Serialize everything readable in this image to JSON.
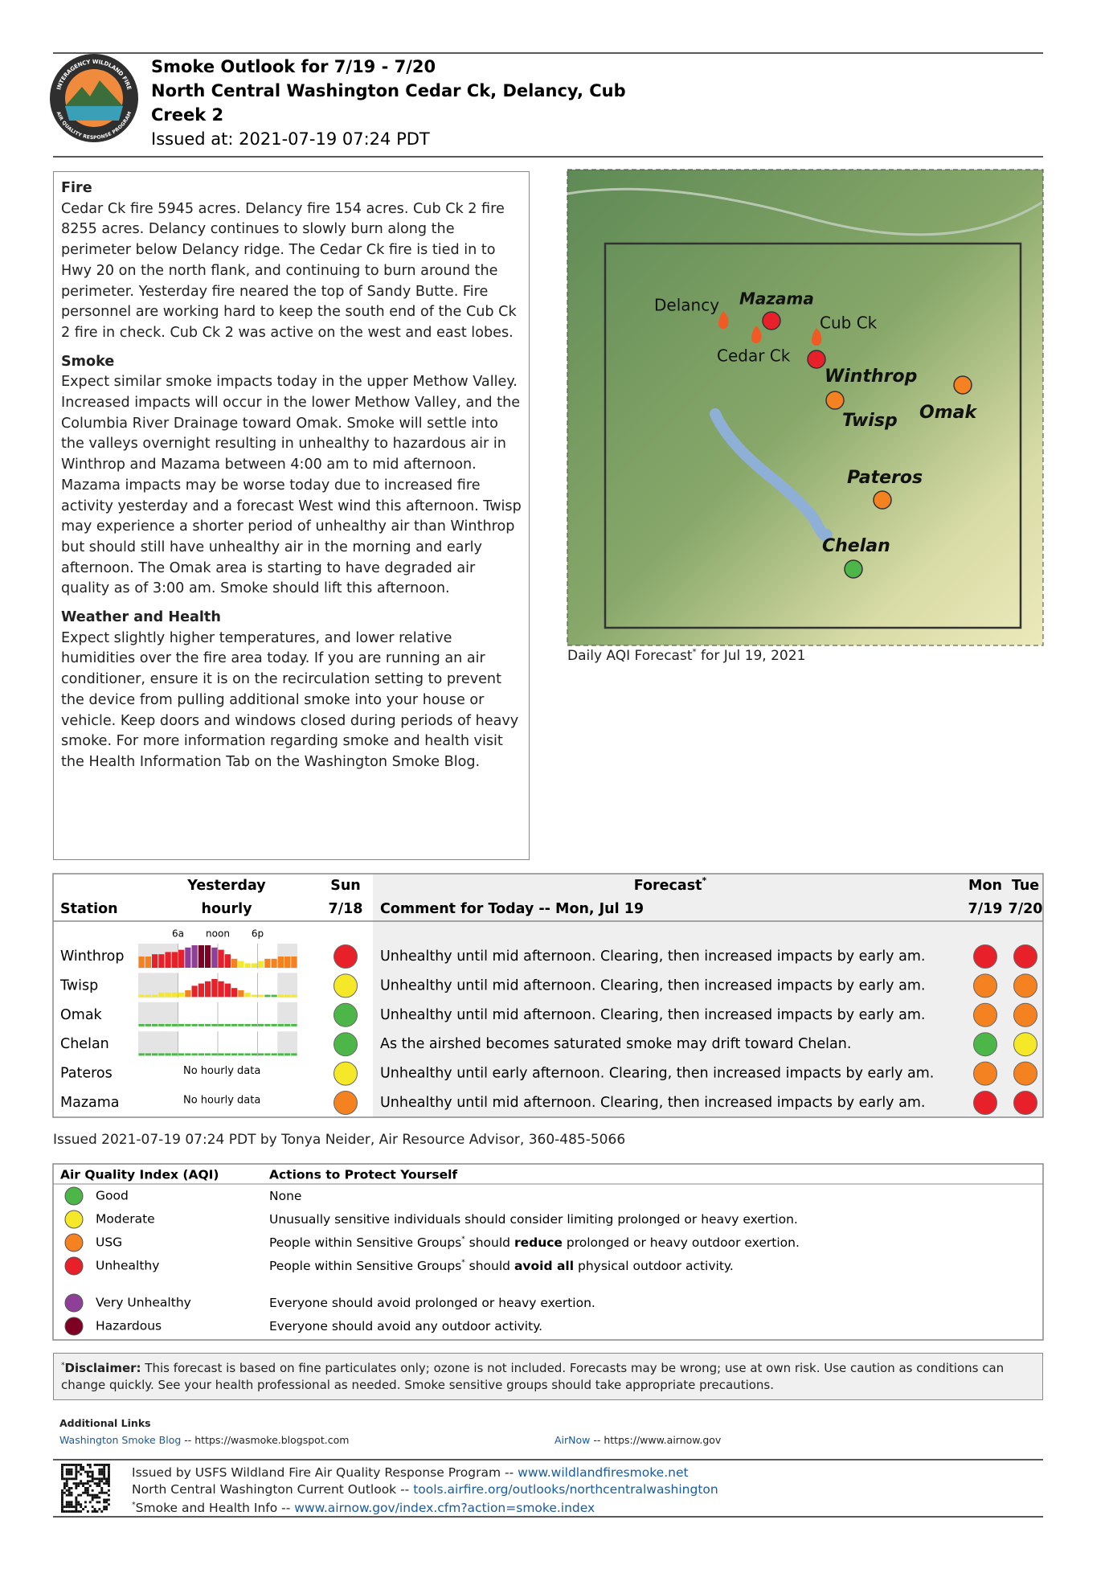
{
  "header": {
    "logo_top": "INTERAGENCY WILDLAND FIRE",
    "logo_bottom": "AIR QUALITY RESPONSE PROGRAM",
    "title_lines": [
      "Smoke Outlook for 7/19 - 7/20",
      "North Central Washington Cedar Ck, Delancy, Cub",
      "Creek 2"
    ],
    "issued": "Issued at: 2021-07-19 07:24 PDT"
  },
  "sections": [
    {
      "heading": "Fire",
      "text": "Cedar Ck fire 5945 acres. Delancy fire 154 acres. Cub Ck 2 fire 8255 acres. Delancy continues to slowly burn along the perimeter below Delancy ridge. The Cedar Ck fire is tied in to Hwy 20 on the north flank, and continuing to burn around the perimeter. Yesterday fire neared the top of Sandy Butte. Fire personnel are working hard to keep the south end of the Cub Ck 2 fire in check. Cub Ck 2 was active on the west and east lobes."
    },
    {
      "heading": "Smoke",
      "text": "Expect similar smoke impacts today in the upper Methow Valley. Increased impacts will occur in the lower Methow Valley, and the Columbia River Drainage toward Omak. Smoke will settle into the valleys overnight resulting in unhealthy to hazardous air in Winthrop and Mazama between 4:00 am to mid afternoon. Mazama impacts may be worse today due to increased fire activity yesterday and a forecast West wind this afternoon. Twisp may experience a shorter period of unhealthy air than Winthrop but should still have unhealthy air in the morning and early afternoon. The Omak area is starting to have degraded air quality as of 3:00 am. Smoke should lift this afternoon."
    },
    {
      "heading": "Weather and Health",
      "text": "Expect slightly higher temperatures, and lower relative humidities over the fire area today. If you are running an air conditioner, ensure it is on the recirculation setting to prevent the device from pulling additional smoke into your house or vehicle. Keep doors and windows closed during periods of heavy smoke. For more information regarding smoke and health visit the Health Information Tab on the Washington Smoke Blog."
    }
  ],
  "map": {
    "labels": [
      "Delancy",
      "Mazama",
      "Cub Ck",
      "Cedar Ck",
      "Winthrop",
      "Omak",
      "Twisp",
      "Pateros",
      "Chelan"
    ],
    "caption": "Daily AQI Forecast",
    "caption_mark": "*",
    "caption_date": " for Jul 19, 2021"
  },
  "forecast_table": {
    "headers": {
      "station": "Station",
      "yesterday": "Yesterday",
      "hourly": "hourly",
      "sun": "Sun",
      "sun_date": "7/18",
      "forecast": "Forecast",
      "forecast_mark": "*",
      "comment": "Comment for Today -- Mon, Jul 19",
      "mon": "Mon",
      "mon_date": "7/19",
      "tue": "Tue",
      "tue_date": "7/20"
    },
    "hourly_ticks": [
      {
        "value": 6,
        "label": "6a"
      },
      {
        "value": 12,
        "label": "noon"
      },
      {
        "value": 18,
        "label": "6p"
      }
    ],
    "rows": [
      {
        "station": "Winthrop",
        "hourly_values": [
          5,
          5,
          6,
          6,
          7,
          7,
          8,
          9,
          10,
          10,
          10,
          9,
          8,
          6,
          4,
          3,
          2,
          2,
          3,
          4,
          4,
          5,
          5,
          5
        ],
        "hourly_levels": [
          2,
          2,
          3,
          3,
          3,
          3,
          3,
          4,
          4,
          5,
          5,
          4,
          3,
          3,
          2,
          1,
          1,
          1,
          1,
          2,
          2,
          2,
          2,
          2
        ],
        "sun": 3,
        "comment": "Unhealthy until mid afternoon. Clearing, then increased impacts by early am.",
        "mon": 3,
        "tue": 3
      },
      {
        "station": "Twisp",
        "hourly_values": [
          1,
          1,
          1,
          2,
          2,
          2,
          2,
          3,
          5,
          6,
          7,
          8,
          7,
          6,
          4,
          3,
          2,
          1,
          1,
          1,
          1,
          1,
          1,
          1
        ],
        "hourly_levels": [
          1,
          1,
          1,
          1,
          1,
          1,
          1,
          2,
          3,
          3,
          3,
          3,
          3,
          3,
          3,
          2,
          1,
          1,
          1,
          0,
          0,
          1,
          1,
          1
        ],
        "sun": 1,
        "comment": "Unhealthy until mid afternoon. Clearing, then increased impacts by early am.",
        "mon": 2,
        "tue": 2
      },
      {
        "station": "Omak",
        "hourly_values": [
          1,
          1,
          1,
          1,
          1,
          1,
          1,
          1,
          1,
          1,
          1,
          1,
          1,
          1,
          1,
          1,
          1,
          1,
          1,
          1,
          1,
          1,
          1,
          1
        ],
        "hourly_levels": [
          0,
          0,
          0,
          0,
          0,
          0,
          0,
          0,
          0,
          0,
          0,
          0,
          0,
          0,
          0,
          0,
          0,
          0,
          0,
          0,
          0,
          0,
          0,
          0
        ],
        "sun": 0,
        "comment": "Unhealthy until mid afternoon. Clearing, then increased impacts by early am.",
        "mon": 2,
        "tue": 2
      },
      {
        "station": "Chelan",
        "hourly_values": [
          1,
          1,
          1,
          1,
          1,
          1,
          1,
          1,
          1,
          1,
          1,
          1,
          1,
          1,
          1,
          1,
          1,
          1,
          1,
          1,
          1,
          1,
          1,
          1
        ],
        "hourly_levels": [
          0,
          0,
          0,
          0,
          0,
          0,
          0,
          0,
          0,
          0,
          0,
          0,
          0,
          0,
          0,
          0,
          0,
          0,
          0,
          0,
          0,
          0,
          0,
          0
        ],
        "sun": 0,
        "comment": "As the airshed becomes saturated smoke may drift toward Chelan.",
        "mon": 0,
        "tue": 1
      },
      {
        "station": "Pateros",
        "hourly_note": "No hourly data",
        "sun": 1,
        "comment": "Unhealthy until early afternoon. Clearing, then increased impacts by early am.",
        "mon": 2,
        "tue": 2
      },
      {
        "station": "Mazama",
        "hourly_note": "No hourly data",
        "sun": 2,
        "comment": "Unhealthy until mid afternoon. Clearing, then increased impacts by early am.",
        "mon": 3,
        "tue": 3
      }
    ]
  },
  "issued_line": "Issued 2021-07-19 07:24 PDT by Tonya Neider, Air Resource Advisor, 360-485-5066",
  "aqi": {
    "headers": [
      "Air Quality Index (AQI)",
      "Actions to Protect Yourself"
    ],
    "levels": [
      {
        "name": "Good",
        "color": "#4cb648",
        "action": [
          {
            "text": "None"
          }
        ]
      },
      {
        "name": "Moderate",
        "color": "#f4e829",
        "action": [
          {
            "text": "Unusually sensitive individuals should consider limiting prolonged or heavy exertion."
          }
        ]
      },
      {
        "name": "USG",
        "color": "#f58220",
        "action": [
          {
            "text": "People within Sensitive Groups"
          },
          {
            "text": "*",
            "style": "sup"
          },
          {
            "text": " should "
          },
          {
            "text": "reduce",
            "style": "bold"
          },
          {
            "text": " prolonged or heavy outdoor exertion."
          }
        ]
      },
      {
        "name": "Unhealthy",
        "color": "#e8202a",
        "action": [
          {
            "text": "People within Sensitive Groups"
          },
          {
            "text": "*",
            "style": "sup"
          },
          {
            "text": " should "
          },
          {
            "text": "avoid all",
            "style": "bold"
          },
          {
            "text": " physical outdoor activity."
          }
        ]
      },
      {
        "name": "Very Unhealthy",
        "color": "#8e3f97",
        "action": [
          {
            "text": "Everyone should avoid prolonged or heavy exertion."
          }
        ]
      },
      {
        "name": "Hazardous",
        "color": "#7e0023",
        "action": [
          {
            "text": "Everyone should avoid any outdoor activity."
          }
        ]
      }
    ]
  },
  "disclaimer": {
    "mark": "*",
    "label": "Disclaimer:",
    "text": " This forecast is based on fine particulates only; ozone is not included. Forecasts may be wrong; use at own risk. Use caution as conditions can change quickly. See your health professional as needed. Smoke sensitive groups should take appropriate precautions."
  },
  "additional_links": {
    "title": "Additional Links",
    "links": [
      {
        "name": "Washington Smoke Blog",
        "url": " -- https://wasmoke.blogspot.com"
      },
      {
        "name": "AirNow",
        "url": " -- https://www.airnow.gov"
      }
    ]
  },
  "footer": [
    {
      "text": "Issued by USFS Wildland Fire Air Quality Response Program -- ",
      "link": "www.wildlandfiresmoke.net"
    },
    {
      "text": "North Central Washington Current Outlook -- ",
      "link": "tools.airfire.org/outlooks/northcentralwashington"
    },
    {
      "mark": "*",
      "text": "Smoke and Health Info -- ",
      "link": "www.airnow.gov/index.cfm?action=smoke.index"
    }
  ]
}
